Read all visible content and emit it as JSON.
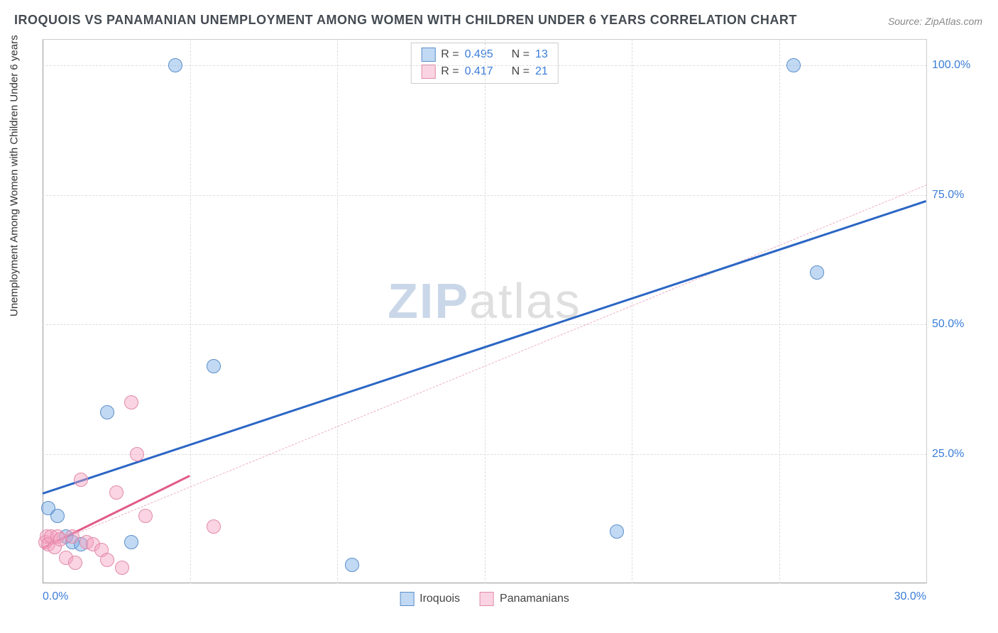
{
  "title": "IROQUOIS VS PANAMANIAN UNEMPLOYMENT AMONG WOMEN WITH CHILDREN UNDER 6 YEARS CORRELATION CHART",
  "source": "Source: ZipAtlas.com",
  "ylabel": "Unemployment Among Women with Children Under 6 years",
  "watermark": {
    "bold": "ZIP",
    "rest": "atlas"
  },
  "axes": {
    "xlim": [
      0,
      30
    ],
    "ylim": [
      0,
      105
    ],
    "xticks": [
      {
        "v": 0,
        "label": "0.0%"
      },
      {
        "v": 30,
        "label": "30.0%"
      }
    ],
    "yticks": [
      {
        "v": 25,
        "label": "25.0%"
      },
      {
        "v": 50,
        "label": "50.0%"
      },
      {
        "v": 75,
        "label": "75.0%"
      },
      {
        "v": 100,
        "label": "100.0%"
      }
    ],
    "xgrid": [
      5,
      10,
      15,
      20,
      25
    ],
    "ygrid": [
      25,
      50,
      75,
      100
    ],
    "grid_color": "#dddddd",
    "axis_color": "#999999"
  },
  "series": [
    {
      "name": "Iroquois",
      "color_fill": "rgba(120,170,230,0.45)",
      "color_stroke": "#5a8fc9",
      "marker_r": 10,
      "points": [
        [
          0.2,
          14.5
        ],
        [
          0.5,
          13.0
        ],
        [
          0.8,
          9.0
        ],
        [
          1.0,
          8.0
        ],
        [
          1.3,
          7.5
        ],
        [
          2.2,
          33.0
        ],
        [
          3.0,
          8.0
        ],
        [
          4.5,
          100.0
        ],
        [
          5.8,
          42.0
        ],
        [
          10.5,
          3.5
        ],
        [
          19.5,
          10.0
        ],
        [
          25.5,
          100.0
        ],
        [
          26.3,
          60.0
        ]
      ],
      "trend_solid": {
        "x1": 0,
        "y1": 17.5,
        "x2": 30,
        "y2": 74.0,
        "color": "#2b66c4",
        "width": 3
      },
      "trend_dash": {
        "x1": 0,
        "y1": 17.5,
        "x2": 30,
        "y2": 74.0,
        "color": "rgba(120,170,230,0.8)",
        "width": 1.5
      },
      "R": "0.495",
      "N": "13"
    },
    {
      "name": "Panamanians",
      "color_fill": "rgba(245,160,190,0.45)",
      "color_stroke": "#e28aa8",
      "marker_r": 10,
      "points": [
        [
          0.1,
          8.0
        ],
        [
          0.15,
          9.0
        ],
        [
          0.2,
          7.5
        ],
        [
          0.3,
          9.0
        ],
        [
          0.4,
          7.0
        ],
        [
          0.5,
          9.0
        ],
        [
          0.6,
          8.5
        ],
        [
          0.8,
          5.0
        ],
        [
          1.0,
          9.0
        ],
        [
          1.1,
          4.0
        ],
        [
          1.3,
          20.0
        ],
        [
          1.5,
          8.0
        ],
        [
          1.7,
          7.5
        ],
        [
          2.0,
          6.5
        ],
        [
          2.2,
          4.5
        ],
        [
          2.5,
          17.5
        ],
        [
          2.7,
          3.0
        ],
        [
          3.0,
          35.0
        ],
        [
          3.2,
          25.0
        ],
        [
          5.8,
          11.0
        ],
        [
          3.5,
          13.0
        ]
      ],
      "trend_solid": {
        "x1": 0,
        "y1": 7.0,
        "x2": 5.0,
        "y2": 21.0,
        "color": "#e15b8a",
        "width": 3
      },
      "trend_dash": {
        "x1": 0,
        "y1": 7.0,
        "x2": 30,
        "y2": 77.0,
        "color": "rgba(230,140,170,0.7)",
        "width": 1.5
      },
      "R": "0.417",
      "N": "21"
    }
  ],
  "legend_top_labels": {
    "R": "R =",
    "N": "N ="
  },
  "background_color": "#ffffff"
}
